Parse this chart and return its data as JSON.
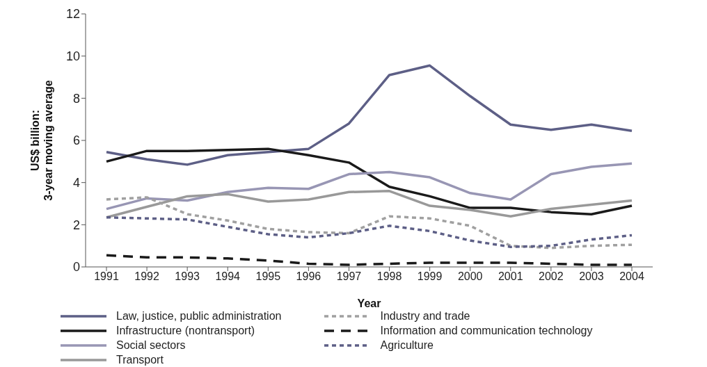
{
  "chart_data": {
    "type": "line",
    "xlabel": "Year",
    "ylabel": "US$ billion:\n3-year moving average",
    "categories": [
      "1991",
      "1992",
      "1993",
      "1994",
      "1995",
      "1996",
      "1997",
      "1998",
      "1999",
      "2000",
      "2001",
      "2002",
      "2003",
      "2004"
    ],
    "ylim": [
      0,
      12
    ],
    "yticks": [
      0,
      2,
      4,
      6,
      8,
      10,
      12
    ],
    "grid": false,
    "legend": "bottom",
    "marker": "none",
    "series": [
      {
        "name": "Law, justice, public administration",
        "color": "#5d5f86",
        "line_style": "solid",
        "values": [
          5.45,
          5.1,
          4.85,
          5.3,
          5.45,
          5.6,
          6.8,
          9.1,
          9.55,
          8.1,
          6.75,
          6.5,
          6.75,
          6.45
        ]
      },
      {
        "name": "Infrastructure (nontransport)",
        "color": "#1a1a1a",
        "line_style": "solid",
        "values": [
          5.0,
          5.5,
          5.5,
          5.55,
          5.6,
          5.3,
          4.95,
          3.8,
          3.35,
          2.8,
          2.8,
          2.6,
          2.5,
          2.9
        ]
      },
      {
        "name": "Social sectors",
        "color": "#9896b4",
        "line_style": "solid",
        "values": [
          2.75,
          3.25,
          3.15,
          3.55,
          3.75,
          3.7,
          4.4,
          4.5,
          4.25,
          3.5,
          3.2,
          4.4,
          4.75,
          4.9
        ]
      },
      {
        "name": "Transport",
        "color": "#999999",
        "line_style": "solid",
        "values": [
          2.35,
          2.85,
          3.35,
          3.45,
          3.1,
          3.2,
          3.55,
          3.6,
          2.9,
          2.7,
          2.4,
          2.75,
          2.95,
          3.15
        ]
      },
      {
        "name": "Industry and trade",
        "color": "#a0a0a0",
        "line_style": "dotted",
        "values": [
          3.2,
          3.3,
          2.5,
          2.2,
          1.8,
          1.65,
          1.6,
          2.4,
          2.3,
          1.95,
          1.0,
          0.9,
          1.0,
          1.05
        ]
      },
      {
        "name": "Information and communication technology",
        "color": "#1a1a1a",
        "line_style": "dashed",
        "values": [
          0.55,
          0.45,
          0.45,
          0.4,
          0.3,
          0.15,
          0.1,
          0.15,
          0.2,
          0.2,
          0.2,
          0.15,
          0.1,
          0.1
        ]
      },
      {
        "name": "Agriculture",
        "color": "#5d5f86",
        "line_style": "dotted",
        "values": [
          2.35,
          2.3,
          2.25,
          1.9,
          1.55,
          1.4,
          1.6,
          1.95,
          1.7,
          1.25,
          0.95,
          1.0,
          1.3,
          1.5
        ]
      }
    ]
  }
}
